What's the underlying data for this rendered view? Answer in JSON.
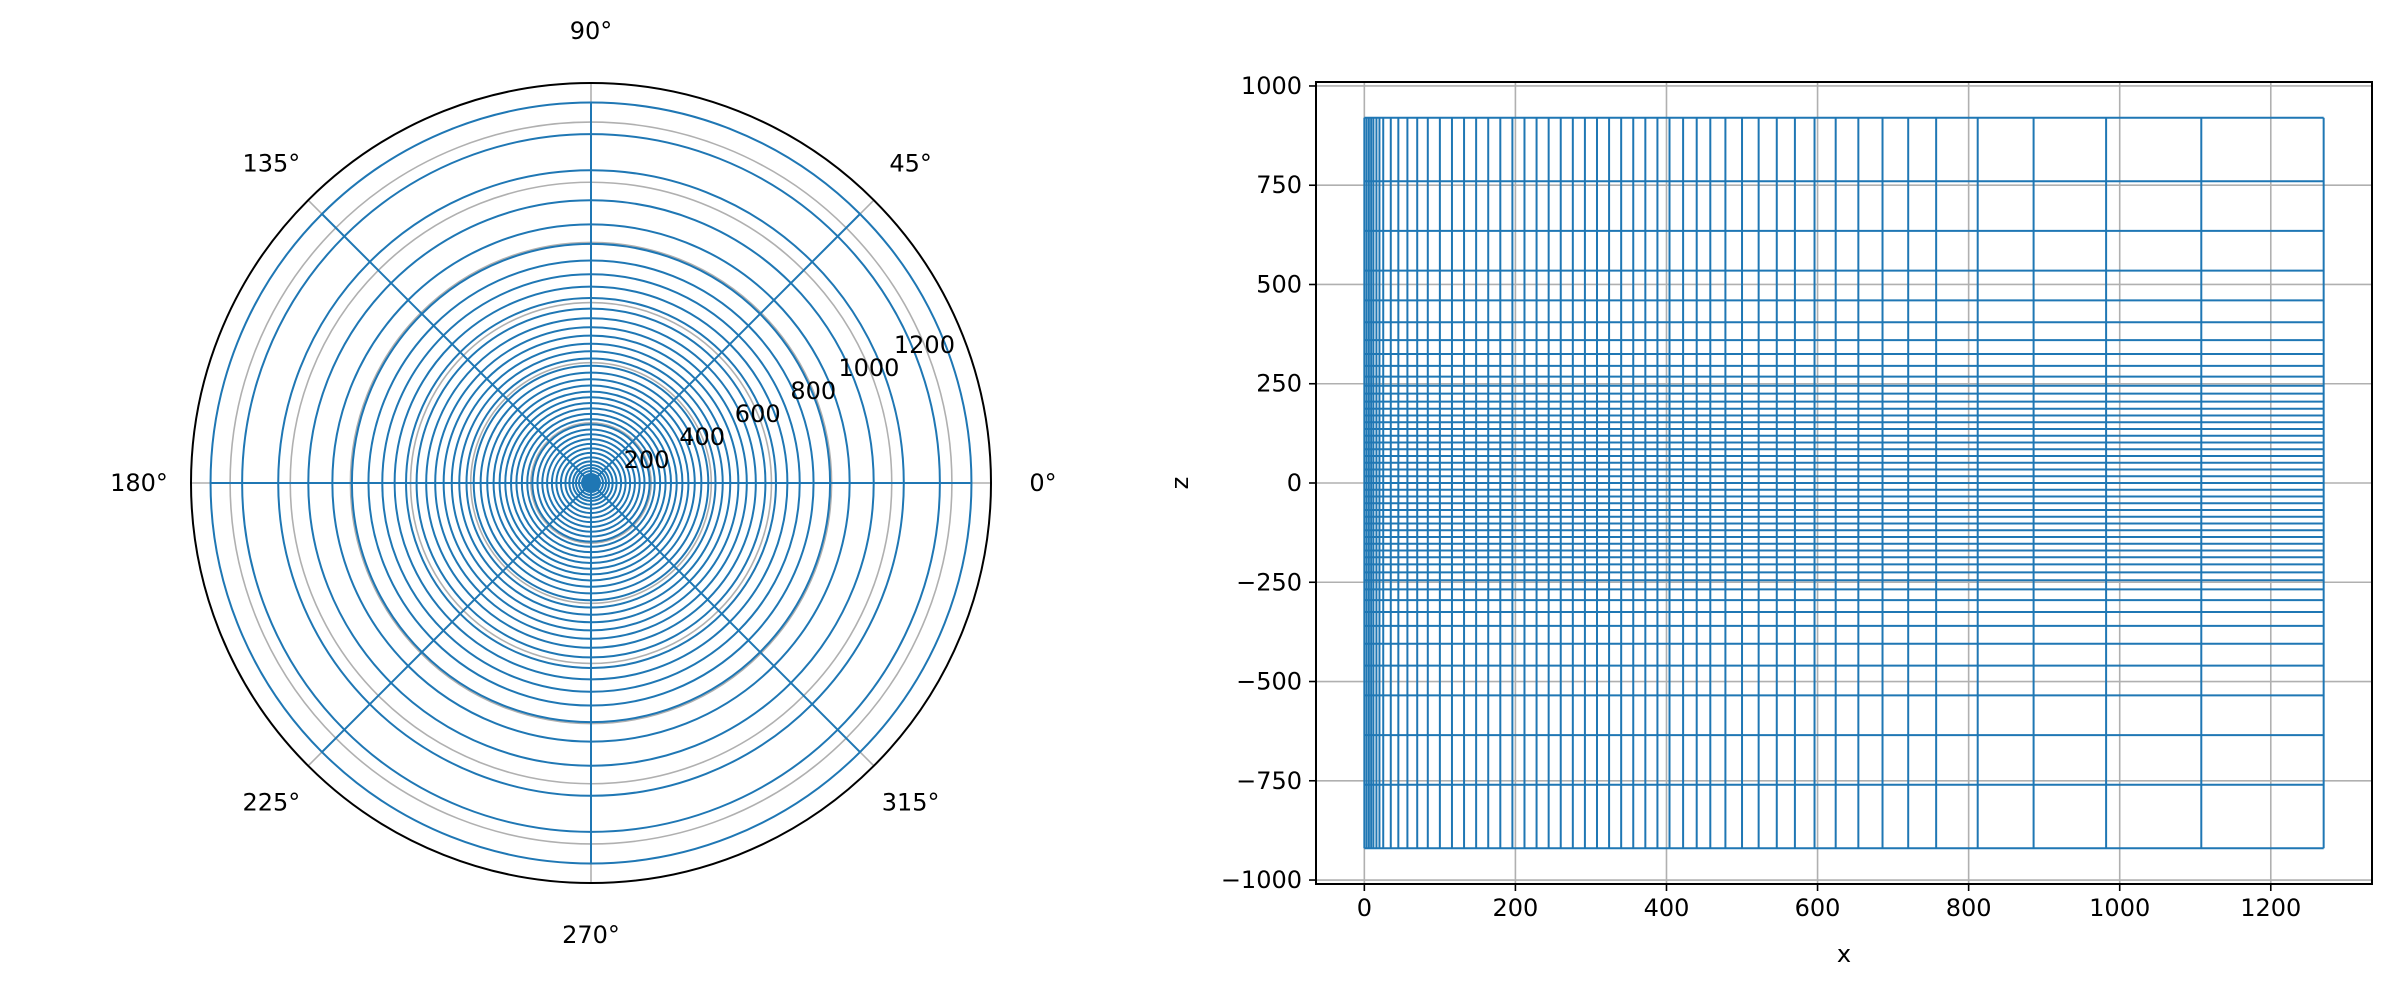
{
  "colors": {
    "mesh": "#1f77b4",
    "grid": "#b0b0b0",
    "axes": "#000000",
    "background": "#ffffff"
  },
  "chart_data": [
    {
      "type": "polar",
      "angle_ticks": [
        {
          "deg": 0,
          "label": "0°"
        },
        {
          "deg": 45,
          "label": "45°"
        },
        {
          "deg": 90,
          "label": "90°"
        },
        {
          "deg": 135,
          "label": "135°"
        },
        {
          "deg": 180,
          "label": "180°"
        },
        {
          "deg": 225,
          "label": "225°"
        },
        {
          "deg": 270,
          "label": "270°"
        },
        {
          "deg": 315,
          "label": "315°"
        }
      ],
      "radial_ticks": [
        {
          "value": 200,
          "label": "200"
        },
        {
          "value": 400,
          "label": "400"
        },
        {
          "value": 600,
          "label": "600"
        },
        {
          "value": 800,
          "label": "800"
        },
        {
          "value": 1000,
          "label": "1000"
        },
        {
          "value": 1200,
          "label": "1200"
        }
      ],
      "rlim": [
        0,
        1330
      ],
      "grid": true,
      "mesh_rings_r": [
        5,
        10,
        15,
        20,
        25,
        30,
        40,
        50,
        60,
        72,
        85,
        100,
        115,
        130,
        146,
        162,
        178,
        195,
        212,
        230,
        248,
        266,
        285,
        304,
        324,
        345,
        367,
        390,
        414,
        438,
        463,
        490,
        518,
        548,
        580,
        615,
        653,
        694,
        740,
        795,
        860,
        940,
        1040,
        1160,
        1265
      ],
      "mesh_spokes_deg": [
        0,
        45,
        90,
        135,
        180,
        225,
        270,
        315
      ]
    },
    {
      "type": "mesh",
      "xlabel": "x",
      "ylabel": "z",
      "xlim": [
        -64,
        1334
      ],
      "ylim": [
        -1010,
        1010
      ],
      "x_ticks": [
        {
          "value": 0,
          "label": "0"
        },
        {
          "value": 200,
          "label": "200"
        },
        {
          "value": 400,
          "label": "400"
        },
        {
          "value": 600,
          "label": "600"
        },
        {
          "value": 800,
          "label": "800"
        },
        {
          "value": 1000,
          "label": "1000"
        },
        {
          "value": 1200,
          "label": "1200"
        }
      ],
      "y_ticks": [
        {
          "value": -1000,
          "label": "−1000"
        },
        {
          "value": -750,
          "label": "−750"
        },
        {
          "value": -500,
          "label": "−500"
        },
        {
          "value": -250,
          "label": "−250"
        },
        {
          "value": 0,
          "label": "0"
        },
        {
          "value": 250,
          "label": "250"
        },
        {
          "value": 500,
          "label": "500"
        },
        {
          "value": 750,
          "label": "750"
        },
        {
          "value": 1000,
          "label": "1000"
        }
      ],
      "grid": true,
      "x_nodes": [
        0,
        3,
        6,
        9,
        12,
        16,
        20,
        25,
        35,
        45,
        57,
        70,
        84,
        100,
        116,
        132,
        148,
        164,
        180,
        196,
        212,
        228,
        244,
        260,
        276,
        292,
        308,
        324,
        340,
        356,
        372,
        388,
        404,
        422,
        440,
        458,
        478,
        500,
        522,
        546,
        570,
        596,
        624,
        654,
        686,
        720,
        757,
        812,
        886,
        982,
        1108,
        1270
      ],
      "z_nodes": [
        -920,
        -760,
        -635,
        -535,
        -460,
        -405,
        -360,
        -325,
        -295,
        -268,
        -245,
        -225,
        -205,
        -187,
        -170,
        -153,
        -136,
        -119,
        -102,
        -85,
        -68,
        -51,
        -34,
        -17,
        0,
        17,
        34,
        51,
        68,
        85,
        102,
        119,
        136,
        153,
        170,
        187,
        205,
        225,
        245,
        268,
        295,
        325,
        360,
        405,
        460,
        535,
        635,
        760,
        920
      ]
    }
  ]
}
